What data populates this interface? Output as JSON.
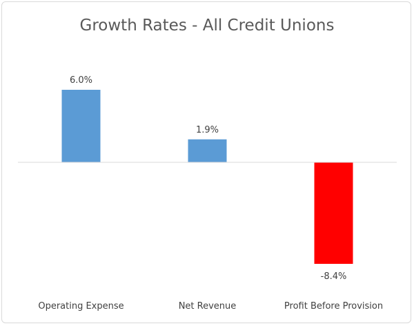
{
  "chart_data": {
    "type": "bar",
    "title": "Growth Rates - All Credit Unions",
    "categories": [
      "Operating Expense",
      "Net Revenue",
      "Profit Before Provision"
    ],
    "values": [
      6.0,
      1.9,
      -8.4
    ],
    "data_labels": [
      "6.0%",
      "1.9%",
      "-8.4%"
    ],
    "unit": "%",
    "ylim": [
      -10,
      8
    ],
    "grid": false,
    "legend": "none",
    "colors": {
      "positive": "#5b9bd5",
      "negative": "#ff0000",
      "axis": "#d9d9d9"
    }
  }
}
